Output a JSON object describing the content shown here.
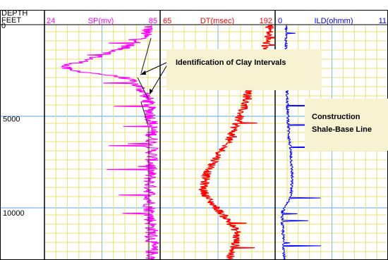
{
  "chart_data": {
    "type": "line",
    "depth_axis": {
      "label_line1": "DEPTH",
      "label_line2": "FEET",
      "top_tick": "0",
      "ticks": [
        "5000",
        "10000"
      ],
      "tick_values": [
        5000,
        10000
      ],
      "range": [
        0,
        12500
      ]
    },
    "tracks": [
      {
        "name": "SP(mv)",
        "min": 24,
        "max": 85,
        "min_label": "24",
        "max_label": "85",
        "color": "#ff00ff",
        "depth": [
          0,
          800,
          1400,
          1700,
          2000,
          2200,
          2400,
          2600,
          2800,
          3000,
          3300,
          3600,
          4000,
          4600,
          5200,
          6000,
          7000,
          8000,
          9000,
          10000,
          11000,
          12000,
          12500
        ],
        "values": [
          80,
          76,
          62,
          52,
          43,
          34,
          36,
          52,
          66,
          70,
          74,
          77,
          79,
          80,
          81,
          81,
          81,
          80,
          80,
          80,
          81,
          81,
          81
        ]
      },
      {
        "name": "DT(msec)",
        "min": 65,
        "max": 192,
        "min_label": "65",
        "max_label": "192",
        "color": "#ff0000",
        "depth": [
          0,
          1200,
          2000,
          3000,
          4000,
          5000,
          6000,
          7000,
          8000,
          8800,
          9300,
          9800,
          10300,
          11000,
          11700,
          12500
        ],
        "values": [
          188,
          182,
          176,
          168,
          160,
          152,
          142,
          128,
          115,
          112,
          118,
          128,
          138,
          150,
          148,
          140
        ]
      },
      {
        "name": "ILD(ohmm)",
        "min": 0,
        "max": 11,
        "min_label": "0",
        "max_label": "11",
        "color": "#0000ff",
        "depth": [
          0,
          1500,
          3000,
          4000,
          5000,
          6000,
          7000,
          8000,
          9000,
          9600,
          10000,
          10500,
          11000,
          12000,
          12500
        ],
        "values": [
          1.0,
          1.0,
          1.1,
          1.1,
          1.2,
          1.3,
          1.5,
          1.6,
          1.5,
          1.0,
          0.6,
          0.6,
          0.7,
          0.8,
          0.8
        ]
      }
    ],
    "annotations": [
      {
        "text": "Identification of Clay Intervals"
      },
      {
        "text_line1": "Construction",
        "text_line2": "Shale-Base Line"
      }
    ]
  }
}
